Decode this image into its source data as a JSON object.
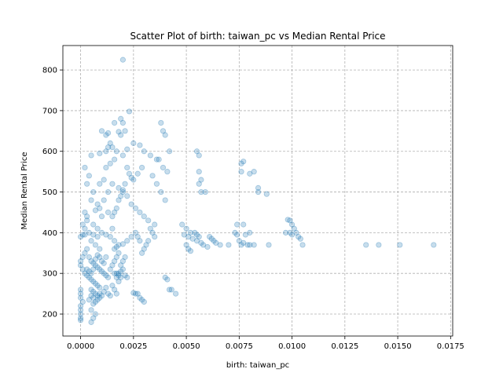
{
  "chart_data": {
    "type": "scatter",
    "title": "Scatter Plot of birth: taiwan_pc vs Median Rental Price",
    "xlabel": "birth: taiwan_pc",
    "ylabel": "Median Rental Price",
    "xlim": [
      -0.00084,
      0.0176
    ],
    "ylim": [
      146,
      860
    ],
    "grid": true,
    "point_color": "#1f77b4",
    "point_alpha": 0.25,
    "x_ticks": [
      {
        "value": 0.0,
        "label": "0.0000"
      },
      {
        "value": 0.0025,
        "label": "0.0025"
      },
      {
        "value": 0.005,
        "label": "0.0050"
      },
      {
        "value": 0.0075,
        "label": "0.0075"
      },
      {
        "value": 0.01,
        "label": "0.0100"
      },
      {
        "value": 0.0125,
        "label": "0.0125"
      },
      {
        "value": 0.015,
        "label": "0.0150"
      },
      {
        "value": 0.0175,
        "label": "0.0175"
      }
    ],
    "y_ticks": [
      {
        "value": 200,
        "label": "200"
      },
      {
        "value": 300,
        "label": "300"
      },
      {
        "value": 400,
        "label": "400"
      },
      {
        "value": 500,
        "label": "500"
      },
      {
        "value": 600,
        "label": "600"
      },
      {
        "value": 700,
        "label": "700"
      },
      {
        "value": 800,
        "label": "800"
      }
    ],
    "points": [
      [
        0.002,
        825
      ],
      [
        0.0023,
        698
      ],
      [
        0.0019,
        680
      ],
      [
        0.002,
        670
      ],
      [
        0.0016,
        670
      ],
      [
        0.001,
        650
      ],
      [
        0.0013,
        645
      ],
      [
        0.0018,
        648
      ],
      [
        0.0021,
        650
      ],
      [
        0.0038,
        670
      ],
      [
        0.0039,
        650
      ],
      [
        0.004,
        640
      ],
      [
        0.0005,
        590
      ],
      [
        0.0009,
        595
      ],
      [
        0.0012,
        600
      ],
      [
        0.0015,
        610
      ],
      [
        0.0017,
        600
      ],
      [
        0.0022,
        605
      ],
      [
        0.0025,
        620
      ],
      [
        0.0028,
        615
      ],
      [
        0.003,
        600
      ],
      [
        0.0033,
        590
      ],
      [
        0.0036,
        580
      ],
      [
        0.0042,
        600
      ],
      [
        0.0055,
        600
      ],
      [
        0.0056,
        590
      ],
      [
        0.0077,
        575
      ],
      [
        0.0076,
        570
      ],
      [
        0.0082,
        550
      ],
      [
        0.008,
        545
      ],
      [
        0.0076,
        550
      ],
      [
        0.0084,
        510
      ],
      [
        0.0084,
        500
      ],
      [
        0.0088,
        495
      ],
      [
        0.0056,
        550
      ],
      [
        0.0057,
        530
      ],
      [
        0.0056,
        520
      ],
      [
        0.0057,
        500
      ],
      [
        0.0059,
        500
      ],
      [
        0.0002,
        560
      ],
      [
        0.0004,
        540
      ],
      [
        0.0003,
        520
      ],
      [
        0.0006,
        500
      ],
      [
        0.0005,
        480
      ],
      [
        0.0008,
        470
      ],
      [
        0.0007,
        455
      ],
      [
        0.001,
        440
      ],
      [
        0.0003,
        440
      ],
      [
        0.0002,
        450
      ],
      [
        0.0006,
        420
      ],
      [
        0.0008,
        410
      ],
      [
        0.001,
        400
      ],
      [
        0.0012,
        395
      ],
      [
        0.0014,
        390
      ],
      [
        0.0016,
        380
      ],
      [
        0.0018,
        370
      ],
      [
        0.002,
        372
      ],
      [
        0.0022,
        380
      ],
      [
        0.0024,
        390
      ],
      [
        0.0015,
        520
      ],
      [
        0.0018,
        510
      ],
      [
        0.002,
        500
      ],
      [
        0.0022,
        490
      ],
      [
        0.0024,
        470
      ],
      [
        0.0026,
        460
      ],
      [
        0.0028,
        450
      ],
      [
        0.003,
        440
      ],
      [
        0.0032,
        430
      ],
      [
        0.0035,
        420
      ],
      [
        0.0034,
        540
      ],
      [
        0.0036,
        520
      ],
      [
        0.0038,
        500
      ],
      [
        0.004,
        480
      ],
      [
        0.0041,
        550
      ],
      [
        0.0039,
        560
      ],
      [
        0.0037,
        580
      ],
      [
        0.0029,
        560
      ],
      [
        0.0027,
        545
      ],
      [
        0.0025,
        530
      ],
      [
        0.0012,
        560
      ],
      [
        0.0014,
        570
      ],
      [
        0.0016,
        580
      ],
      [
        0.0011,
        530
      ],
      [
        0.0009,
        520
      ],
      [
        0.0013,
        500
      ],
      [
        0.0011,
        480
      ],
      [
        0.0009,
        460
      ],
      [
        0.0013,
        450
      ],
      [
        0.0015,
        440
      ],
      [
        0.0004,
        400
      ],
      [
        0.0006,
        395
      ],
      [
        0.0008,
        390
      ],
      [
        0.0005,
        380
      ],
      [
        0.0007,
        370
      ],
      [
        0.0009,
        360
      ],
      [
        0.0003,
        360
      ],
      [
        0.0002,
        350
      ],
      [
        0.0001,
        340
      ],
      [
        0.0,
        330
      ],
      [
        0.0,
        320
      ],
      [
        0.0001,
        310
      ],
      [
        0.0002,
        300
      ],
      [
        0.0003,
        295
      ],
      [
        0.0004,
        290
      ],
      [
        0.0005,
        285
      ],
      [
        0.0006,
        280
      ],
      [
        0.0007,
        275
      ],
      [
        0.0008,
        270
      ],
      [
        0.0009,
        265
      ],
      [
        0.0004,
        340
      ],
      [
        0.0005,
        330
      ],
      [
        0.0006,
        325
      ],
      [
        0.0007,
        320
      ],
      [
        0.0008,
        315
      ],
      [
        0.0009,
        310
      ],
      [
        0.001,
        305
      ],
      [
        0.0011,
        300
      ],
      [
        0.0012,
        295
      ],
      [
        0.0013,
        290
      ],
      [
        0.0003,
        310
      ],
      [
        0.0004,
        305
      ],
      [
        0.0005,
        300
      ],
      [
        0.0006,
        310
      ],
      [
        0.0007,
        335
      ],
      [
        0.0008,
        345
      ],
      [
        0.0009,
        340
      ],
      [
        0.001,
        330
      ],
      [
        0.0011,
        325
      ],
      [
        0.0012,
        340
      ],
      [
        0.0005,
        260
      ],
      [
        0.0006,
        255
      ],
      [
        0.0007,
        250
      ],
      [
        0.0008,
        245
      ],
      [
        0.0009,
        240
      ],
      [
        0.0004,
        235
      ],
      [
        0.0006,
        225
      ],
      [
        0.0005,
        210
      ],
      [
        0.0007,
        200
      ],
      [
        0.0006,
        190
      ],
      [
        0.0,
        260
      ],
      [
        0.0,
        250
      ],
      [
        0.0,
        240
      ],
      [
        0.0001,
        230
      ],
      [
        0.0,
        220
      ],
      [
        0.0,
        210
      ],
      [
        0.0,
        200
      ],
      [
        0.0,
        190
      ],
      [
        0.0,
        185
      ],
      [
        0.0005,
        180
      ],
      [
        0.0001,
        395
      ],
      [
        0.0,
        390
      ],
      [
        0.0002,
        395
      ],
      [
        0.0003,
        430
      ],
      [
        0.0001,
        420
      ],
      [
        0.0002,
        410
      ],
      [
        0.0016,
        330
      ],
      [
        0.0017,
        340
      ],
      [
        0.0018,
        350
      ],
      [
        0.0015,
        320
      ],
      [
        0.0014,
        310
      ],
      [
        0.0019,
        320
      ],
      [
        0.002,
        310
      ],
      [
        0.0016,
        300
      ],
      [
        0.0017,
        290
      ],
      [
        0.0018,
        280
      ],
      [
        0.0015,
        270
      ],
      [
        0.0016,
        260
      ],
      [
        0.0017,
        250
      ],
      [
        0.0018,
        300
      ],
      [
        0.0019,
        305
      ],
      [
        0.002,
        330
      ],
      [
        0.0021,
        340
      ],
      [
        0.0016,
        360
      ],
      [
        0.0017,
        365
      ],
      [
        0.0027,
        250
      ],
      [
        0.0028,
        240
      ],
      [
        0.0029,
        235
      ],
      [
        0.0026,
        250
      ],
      [
        0.0025,
        252
      ],
      [
        0.003,
        230
      ],
      [
        0.0033,
        410
      ],
      [
        0.0034,
        400
      ],
      [
        0.0035,
        390
      ],
      [
        0.0032,
        380
      ],
      [
        0.0031,
        370
      ],
      [
        0.003,
        360
      ],
      [
        0.0029,
        350
      ],
      [
        0.0028,
        380
      ],
      [
        0.0027,
        390
      ],
      [
        0.0026,
        400
      ],
      [
        0.004,
        290
      ],
      [
        0.0041,
        285
      ],
      [
        0.0042,
        260
      ],
      [
        0.0043,
        260
      ],
      [
        0.0045,
        250
      ],
      [
        0.0048,
        420
      ],
      [
        0.005,
        410
      ],
      [
        0.0052,
        400
      ],
      [
        0.0049,
        395
      ],
      [
        0.0051,
        390
      ],
      [
        0.0053,
        385
      ],
      [
        0.0055,
        380
      ],
      [
        0.0057,
        375
      ],
      [
        0.0058,
        370
      ],
      [
        0.006,
        365
      ],
      [
        0.005,
        370
      ],
      [
        0.0051,
        360
      ],
      [
        0.0052,
        355
      ],
      [
        0.0054,
        400
      ],
      [
        0.0055,
        395
      ],
      [
        0.0056,
        390
      ],
      [
        0.0061,
        390
      ],
      [
        0.0062,
        385
      ],
      [
        0.0063,
        380
      ],
      [
        0.0064,
        375
      ],
      [
        0.0066,
        370
      ],
      [
        0.007,
        370
      ],
      [
        0.0073,
        400
      ],
      [
        0.0074,
        395
      ],
      [
        0.0075,
        380
      ],
      [
        0.0076,
        370
      ],
      [
        0.0077,
        375
      ],
      [
        0.0079,
        370
      ],
      [
        0.008,
        400
      ],
      [
        0.0078,
        395
      ],
      [
        0.0074,
        420
      ],
      [
        0.0077,
        420
      ],
      [
        0.008,
        370
      ],
      [
        0.0082,
        370
      ],
      [
        0.0089,
        370
      ],
      [
        0.0097,
        400
      ],
      [
        0.0098,
        432
      ],
      [
        0.0099,
        430
      ],
      [
        0.01,
        420
      ],
      [
        0.0101,
        410
      ],
      [
        0.0099,
        400
      ],
      [
        0.01,
        395
      ],
      [
        0.0102,
        400
      ],
      [
        0.0103,
        390
      ],
      [
        0.0104,
        385
      ],
      [
        0.0105,
        370
      ],
      [
        0.0135,
        370
      ],
      [
        0.0141,
        370
      ],
      [
        0.0151,
        370
      ],
      [
        0.0167,
        370
      ],
      [
        0.0013,
        250
      ],
      [
        0.0014,
        245
      ],
      [
        0.0012,
        265
      ],
      [
        0.0011,
        255
      ],
      [
        0.001,
        245
      ],
      [
        0.0009,
        250
      ],
      [
        0.0008,
        235
      ],
      [
        0.0007,
        230
      ],
      [
        0.0006,
        240
      ],
      [
        0.0005,
        245
      ],
      [
        0.0019,
        290
      ],
      [
        0.0018,
        295
      ],
      [
        0.0017,
        300
      ],
      [
        0.0021,
        295
      ],
      [
        0.0022,
        290
      ],
      [
        0.0013,
        610
      ],
      [
        0.0014,
        620
      ],
      [
        0.0012,
        640
      ],
      [
        0.0019,
        640
      ],
      [
        0.002,
        590
      ],
      [
        0.0022,
        560
      ],
      [
        0.0023,
        545
      ],
      [
        0.0024,
        535
      ],
      [
        0.0021,
        520
      ],
      [
        0.002,
        505
      ],
      [
        0.0019,
        490
      ],
      [
        0.0018,
        480
      ],
      [
        0.0017,
        460
      ],
      [
        0.0016,
        450
      ],
      [
        0.0015,
        410
      ]
    ]
  }
}
